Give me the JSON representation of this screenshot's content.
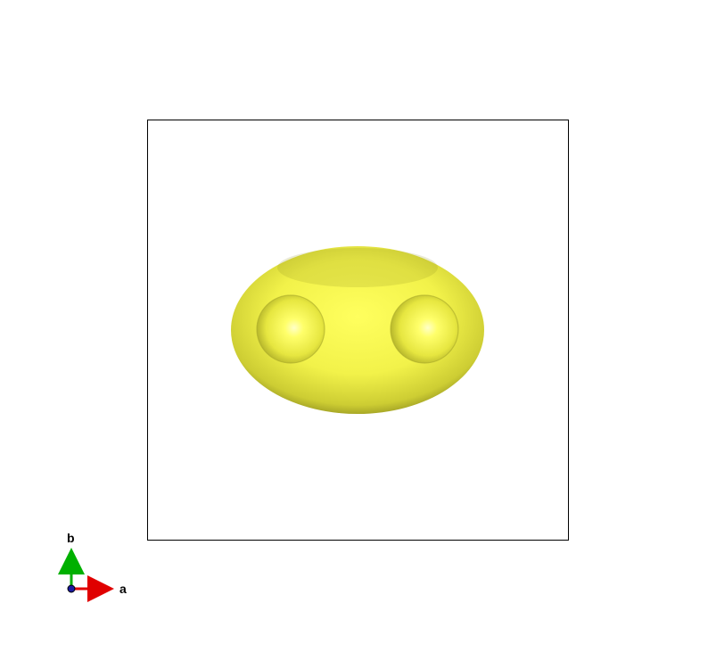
{
  "scene": {
    "background_color": "#ffffff",
    "cell_outline_color": "#000000",
    "isosurface_color": "#f2f24a",
    "isosurface_shadow_color": "#8c8c1e",
    "highlight_color": "#ffff9a"
  },
  "axes": {
    "a_label": "a",
    "b_label": "b",
    "a_color": "#e00000",
    "b_color": "#00b000",
    "c_color": "#1a1aa0"
  }
}
